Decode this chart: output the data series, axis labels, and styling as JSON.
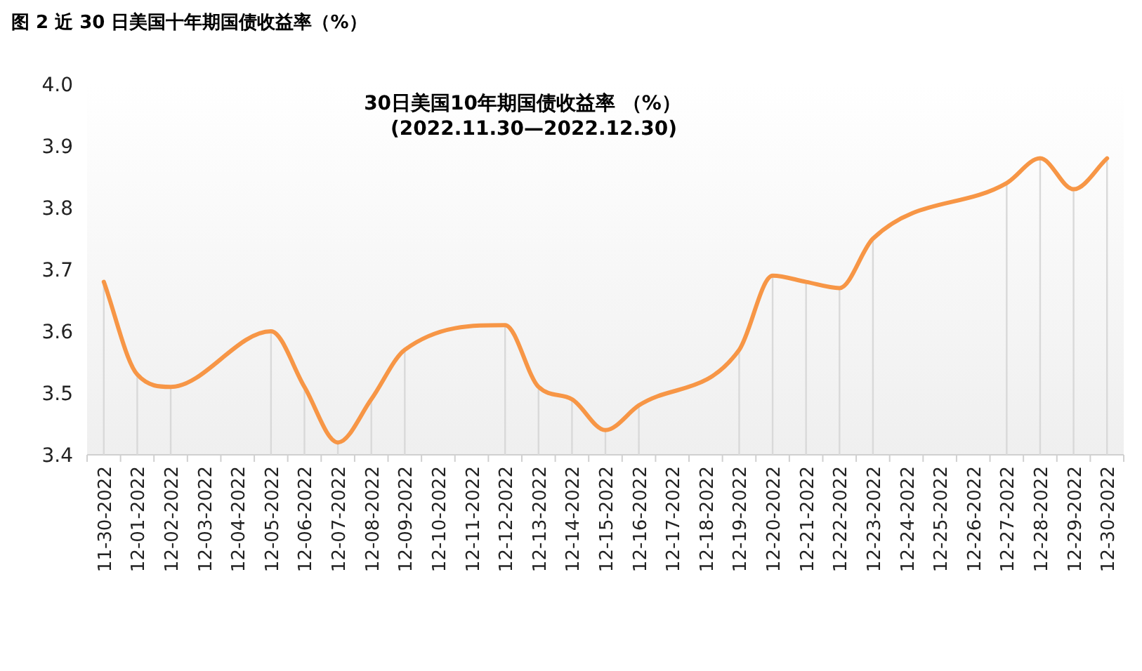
{
  "chart_data": {
    "type": "line",
    "title": "图 2  近 30 日美国十年期国债收益率（%）",
    "subtitle": "30日美国10年期国债收益率 （%）",
    "annotations": [
      "(2022.11.30—2022.12.30)"
    ],
    "categories": [
      "11-30-2022",
      "12-01-2022",
      "12-02-2022",
      "12-03-2022",
      "12-04-2022",
      "12-05-2022",
      "12-06-2022",
      "12-07-2022",
      "12-08-2022",
      "12-09-2022",
      "12-10-2022",
      "12-11-2022",
      "12-12-2022",
      "12-13-2022",
      "12-14-2022",
      "12-15-2022",
      "12-16-2022",
      "12-17-2022",
      "12-18-2022",
      "12-19-2022",
      "12-20-2022",
      "12-21-2022",
      "12-22-2022",
      "12-23-2022",
      "12-24-2022",
      "12-25-2022",
      "12-26-2022",
      "12-27-2022",
      "12-28-2022",
      "12-29-2022",
      "12-30-2022"
    ],
    "series": [
      {
        "type": "bar",
        "color": "#d9d9d9",
        "values": [
          3.68,
          3.53,
          3.51,
          null,
          null,
          3.6,
          3.51,
          3.42,
          3.49,
          3.57,
          null,
          null,
          3.61,
          3.51,
          3.49,
          3.44,
          3.48,
          null,
          null,
          3.57,
          3.69,
          3.68,
          3.67,
          3.75,
          null,
          null,
          null,
          3.84,
          3.88,
          3.83,
          3.88
        ]
      },
      {
        "color": "#f79646",
        "values": [
          3.68,
          3.53,
          3.51,
          null,
          null,
          3.6,
          3.51,
          3.42,
          3.49,
          3.57,
          null,
          null,
          3.61,
          3.51,
          3.49,
          3.44,
          3.48,
          null,
          null,
          3.57,
          3.69,
          3.68,
          3.67,
          3.75,
          null,
          null,
          null,
          3.84,
          3.88,
          3.83,
          3.88
        ]
      }
    ],
    "ylim": [
      3.4,
      4.0
    ],
    "yticks": [
      3.4,
      3.5,
      3.6,
      3.7,
      3.8,
      3.9,
      {
        "value": 4.0,
        "label": "4.0"
      }
    ],
    "grid": false,
    "marker": "none",
    "line_style": "solid"
  }
}
